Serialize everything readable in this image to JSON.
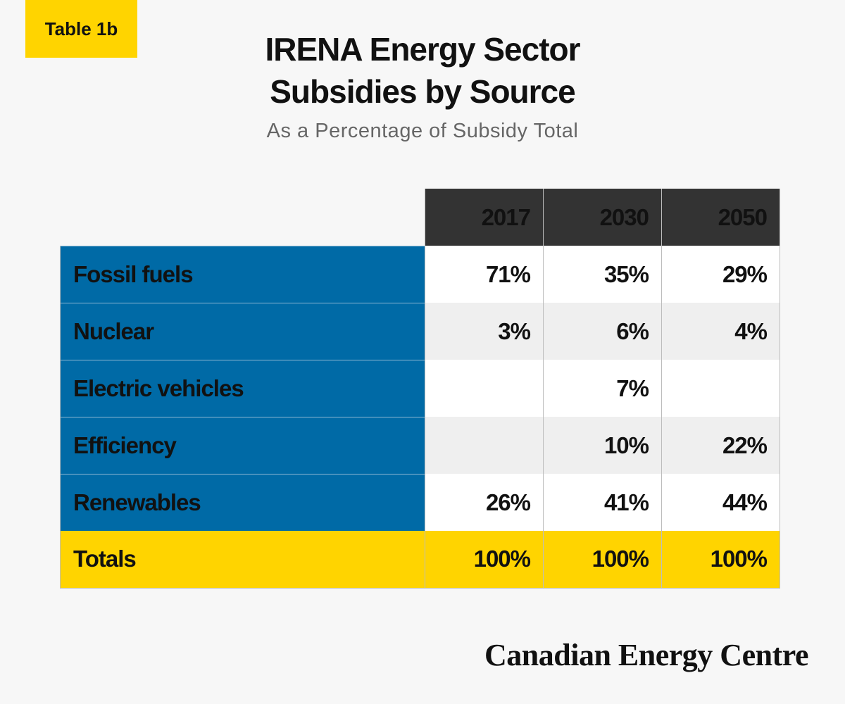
{
  "badge": "Table 1b",
  "title_line1": "IRENA Energy Sector",
  "title_line2": "Subsidies by Source",
  "subtitle": "As a Percentage of Subsidy Total",
  "footer": "Canadian Energy Centre",
  "colors": {
    "accent_yellow": "#ffd400",
    "label_blue": "#006aa6",
    "header_dark": "#333333",
    "background": "#f7f7f7"
  },
  "chart_data": {
    "type": "table",
    "columns": [
      "2017",
      "2030",
      "2050"
    ],
    "rows": [
      {
        "label": "Fossil fuels",
        "cells": [
          "71%",
          "35%",
          "29%"
        ]
      },
      {
        "label": "Nuclear",
        "cells": [
          "3%",
          "6%",
          "4%"
        ]
      },
      {
        "label": "Electric vehicles",
        "cells": [
          "",
          "7%",
          ""
        ]
      },
      {
        "label": "Efficiency",
        "cells": [
          "",
          "10%",
          "22%"
        ]
      },
      {
        "label": "Renewables",
        "cells": [
          "26%",
          "41%",
          "44%"
        ]
      },
      {
        "label": "Totals",
        "cells": [
          "100%",
          "100%",
          "100%"
        ]
      }
    ]
  }
}
